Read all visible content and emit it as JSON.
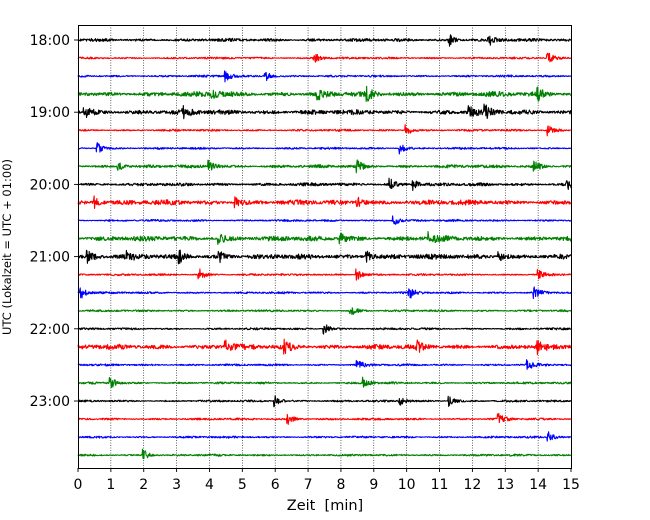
{
  "chart_data": {
    "type": "line",
    "title": "",
    "xlabel": "Zeit  [min]",
    "ylabel": "UTC (Lokalzeit = UTC + 01:00)",
    "xlim": [
      0,
      15
    ],
    "x_ticks": [
      0,
      1,
      2,
      3,
      4,
      5,
      6,
      7,
      8,
      9,
      10,
      11,
      12,
      13,
      14,
      15
    ],
    "x_tick_labels": [
      "0",
      "1",
      "2",
      "3",
      "4",
      "5",
      "6",
      "7",
      "8",
      "9",
      "10",
      "11",
      "12",
      "13",
      "14",
      "15"
    ],
    "y_tick_labels": [
      "18:00",
      "19:00",
      "20:00",
      "21:00",
      "22:00",
      "23:00"
    ],
    "y_tick_trace_index": [
      0,
      4,
      8,
      12,
      16,
      20
    ],
    "vertical_grid": "dotted",
    "legend": "none",
    "trace_colors": [
      "#000000",
      "#ff0000",
      "#0000ff",
      "#008000"
    ],
    "series": [
      {
        "start": "18:00",
        "color": "black",
        "events_min": [
          11.3,
          12.5
        ],
        "noise_level": "medium"
      },
      {
        "start": "18:15",
        "color": "red",
        "events_min": [
          7.2,
          14.3
        ],
        "noise_level": "low"
      },
      {
        "start": "18:30",
        "color": "blue",
        "events_min": [
          4.5,
          5.7
        ],
        "noise_level": "low"
      },
      {
        "start": "18:45",
        "color": "green",
        "events_min": [
          4.1,
          7.3,
          8.8,
          14.0
        ],
        "noise_level": "high"
      },
      {
        "start": "19:00",
        "color": "black",
        "events_min": [
          0.2,
          3.2,
          11.9,
          12.4
        ],
        "noise_level": "high"
      },
      {
        "start": "19:15",
        "color": "red",
        "events_min": [
          10.0,
          14.3
        ],
        "noise_level": "low"
      },
      {
        "start": "19:30",
        "color": "blue",
        "events_min": [
          0.6,
          9.8
        ],
        "noise_level": "low"
      },
      {
        "start": "19:45",
        "color": "green",
        "events_min": [
          1.2,
          4.0,
          8.5,
          13.9
        ],
        "noise_level": "medium"
      },
      {
        "start": "20:00",
        "color": "black",
        "events_min": [
          9.5,
          10.2,
          14.9
        ],
        "noise_level": "medium"
      },
      {
        "start": "20:15",
        "color": "red",
        "events_min": [
          0.5,
          4.8,
          8.5
        ],
        "noise_level": "high"
      },
      {
        "start": "20:30",
        "color": "blue",
        "events_min": [
          9.6
        ],
        "noise_level": "low"
      },
      {
        "start": "20:45",
        "color": "green",
        "events_min": [
          4.3,
          8.0,
          10.7
        ],
        "noise_level": "high"
      },
      {
        "start": "21:00",
        "color": "black",
        "events_min": [
          0.3,
          1.5,
          3.1,
          4.3,
          8.8,
          12.8
        ],
        "noise_level": "high"
      },
      {
        "start": "21:15",
        "color": "red",
        "events_min": [
          3.7,
          8.5,
          14.0
        ],
        "noise_level": "low"
      },
      {
        "start": "21:30",
        "color": "blue",
        "events_min": [
          0.1,
          10.1,
          13.9
        ],
        "noise_level": "low"
      },
      {
        "start": "21:45",
        "color": "green",
        "events_min": [
          8.3
        ],
        "noise_level": "low"
      },
      {
        "start": "22:00",
        "color": "black",
        "events_min": [
          7.5
        ],
        "noise_level": "low"
      },
      {
        "start": "22:15",
        "color": "red",
        "events_min": [
          4.5,
          6.3,
          10.3,
          14.0
        ],
        "noise_level": "high"
      },
      {
        "start": "22:30",
        "color": "blue",
        "events_min": [
          8.5,
          13.7
        ],
        "noise_level": "low"
      },
      {
        "start": "22:45",
        "color": "green",
        "events_min": [
          1.0,
          8.7
        ],
        "noise_level": "low"
      },
      {
        "start": "23:00",
        "color": "black",
        "events_min": [
          6.0,
          9.8,
          11.3
        ],
        "noise_level": "low"
      },
      {
        "start": "23:15",
        "color": "red",
        "events_min": [
          6.4,
          12.8
        ],
        "noise_level": "low"
      },
      {
        "start": "23:30",
        "color": "blue",
        "events_min": [
          14.3
        ],
        "noise_level": "low"
      },
      {
        "start": "23:45",
        "color": "green",
        "events_min": [
          2.0
        ],
        "noise_level": "low"
      }
    ]
  }
}
